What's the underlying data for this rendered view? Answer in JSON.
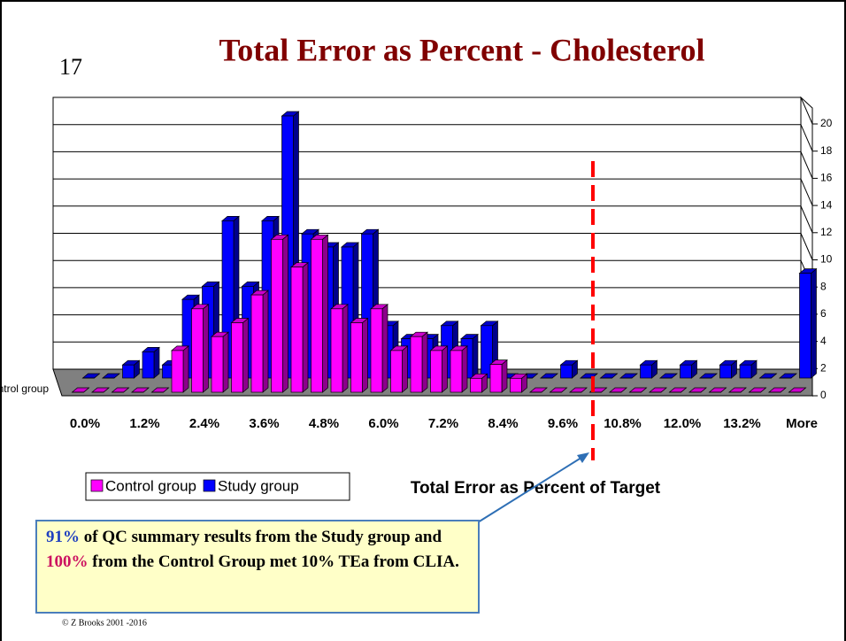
{
  "slide_number": "17",
  "footer": "© Z Brooks 2001 -2016",
  "chart_data": {
    "type": "bar3d",
    "title": "Total Error as Percent - Cholesterol",
    "x_label": "Total Error as Percent of Target",
    "categories": [
      "0.0%",
      null,
      null,
      "1.2%",
      null,
      null,
      "2.4%",
      null,
      null,
      "3.6%",
      null,
      null,
      "4.8%",
      null,
      null,
      "6.0%",
      null,
      null,
      "7.2%",
      null,
      null,
      "8.4%",
      null,
      null,
      "9.6%",
      null,
      null,
      "10.8%",
      null,
      null,
      "12.0%",
      null,
      null,
      "13.2%",
      null,
      null,
      "More"
    ],
    "series": [
      {
        "name": "Control group",
        "color": "#ff00ff",
        "values": [
          0,
          0,
          0,
          0,
          0,
          3,
          6,
          4,
          5,
          7,
          11,
          9,
          11,
          6,
          5,
          6,
          3,
          4,
          3,
          3,
          1,
          2,
          1,
          0,
          0,
          0,
          0,
          0,
          0,
          0,
          0,
          0,
          0,
          0,
          0,
          0,
          0
        ]
      },
      {
        "name": "Study group",
        "color": "#0000ff",
        "values": [
          0,
          0,
          1,
          2,
          1,
          6,
          7,
          12,
          7,
          12,
          20,
          11,
          10,
          10,
          11,
          4,
          3,
          3,
          4,
          3,
          4,
          0,
          0,
          0,
          1,
          0,
          0,
          0,
          1,
          0,
          1,
          0,
          1,
          1,
          0,
          0,
          8
        ]
      }
    ],
    "ylim": [
      0,
      20
    ],
    "yticks": [
      0,
      2,
      4,
      6,
      8,
      10,
      12,
      14,
      16,
      18,
      20
    ],
    "grid": true,
    "legend": "bottom-left",
    "annotation": [
      "91%",
      " of QC summary results from the Study group and ",
      "100%",
      " from the Control Group met 10% TEa from CLIA."
    ]
  }
}
